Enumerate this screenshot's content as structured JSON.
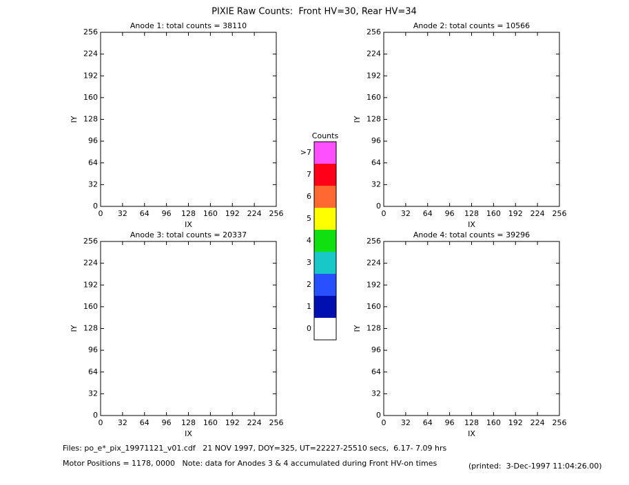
{
  "title": "PIXIE Raw Counts:  Front HV=30, Rear HV=34",
  "chart_data": [
    {
      "type": "heatmap",
      "title": "Anode 1: total counts = 38110",
      "xlabel": "IX",
      "ylabel": "IY",
      "xlim": [
        0,
        256
      ],
      "ylim": [
        0,
        256
      ],
      "xticks": [
        0,
        32,
        64,
        96,
        128,
        160,
        192,
        224,
        256
      ],
      "yticks": [
        0,
        32,
        64,
        96,
        128,
        160,
        192,
        224,
        256
      ]
    },
    {
      "type": "heatmap",
      "title": "Anode 2: total counts = 10566",
      "xlabel": "IX",
      "ylabel": "IY",
      "xlim": [
        0,
        256
      ],
      "ylim": [
        0,
        256
      ],
      "xticks": [
        0,
        32,
        64,
        96,
        128,
        160,
        192,
        224,
        256
      ],
      "yticks": [
        0,
        32,
        64,
        96,
        128,
        160,
        192,
        224,
        256
      ]
    },
    {
      "type": "heatmap",
      "title": "Anode 3: total counts = 20337",
      "xlabel": "IX",
      "ylabel": "IY",
      "xlim": [
        0,
        256
      ],
      "ylim": [
        0,
        256
      ],
      "xticks": [
        0,
        32,
        64,
        96,
        128,
        160,
        192,
        224,
        256
      ],
      "yticks": [
        0,
        32,
        64,
        96,
        128,
        160,
        192,
        224,
        256
      ]
    },
    {
      "type": "heatmap",
      "title": "Anode 4: total counts = 39296",
      "xlabel": "IX",
      "ylabel": "IY",
      "xlim": [
        0,
        256
      ],
      "ylim": [
        0,
        256
      ],
      "xticks": [
        0,
        32,
        64,
        96,
        128,
        160,
        192,
        224,
        256
      ],
      "yticks": [
        0,
        32,
        64,
        96,
        128,
        160,
        192,
        224,
        256
      ]
    }
  ],
  "colorbar": {
    "title": "Counts",
    "ticks": [
      0,
      1,
      2,
      3,
      4,
      5,
      6,
      7,
      {
        "value": 8,
        "label": ">7"
      }
    ],
    "colors": [
      "#ffffff",
      "#0010b0",
      "#2850ff",
      "#18c8c8",
      "#10e010",
      "#ffff00",
      "#ff6830",
      "#ff0018",
      "#ff50ff"
    ]
  },
  "footer": {
    "files": "Files: po_e*_pix_19971121_v01.cdf   21 NOV 1997, DOY=325, UT=22227-25510 secs,  6.17- 7.09 hrs",
    "motor": "Motor Positions = 1178, 0000   Note: data for Anodes 3 & 4 accumulated during Front HV-on times",
    "printed": "(printed:  3-Dec-1997 11:04:26.00)"
  }
}
